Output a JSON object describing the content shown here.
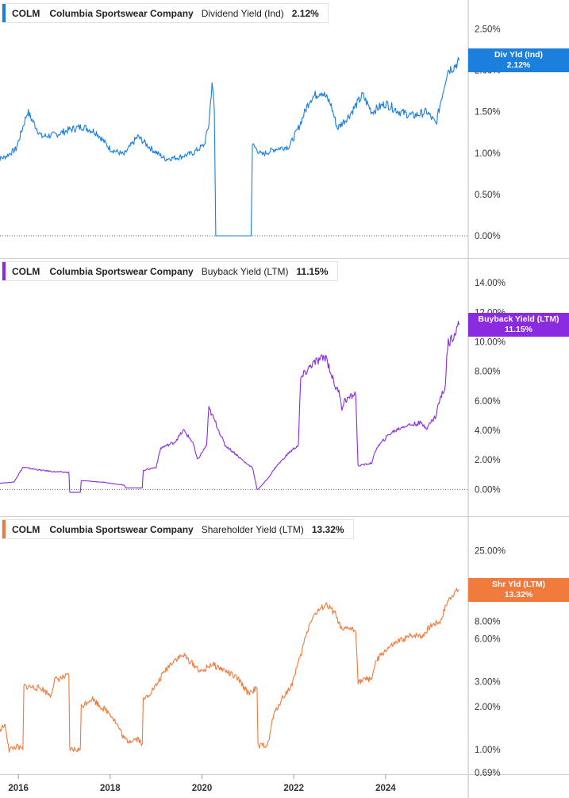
{
  "chart_data": [
    {
      "type": "line",
      "ticker": "COLM",
      "company": "Columbia Sportswear Company",
      "metric": "Dividend Yield (Ind)",
      "current": "2.12%",
      "tag_label": "Div Yld (Ind)",
      "color": "#1a7fdd",
      "y_scale": "linear",
      "y_ticks": [
        "0.00%",
        "0.50%",
        "1.00%",
        "1.50%",
        "2.00%",
        "2.50%"
      ],
      "y_tick_values": [
        0,
        0.5,
        1.0,
        1.5,
        2.0,
        2.5
      ],
      "ylim": [
        0,
        2.85
      ],
      "x": [
        2015.5,
        2015.7,
        2015.95,
        2016.2,
        2016.5,
        2016.8,
        2017.1,
        2017.4,
        2017.7,
        2018.0,
        2018.3,
        2018.6,
        2018.9,
        2019.2,
        2019.5,
        2019.8,
        2020.05,
        2020.15,
        2020.22,
        2020.25,
        2020.27,
        2020.3,
        2021.07,
        2021.1,
        2021.3,
        2021.6,
        2021.9,
        2022.1,
        2022.35,
        2022.6,
        2022.8,
        2022.95,
        2023.2,
        2023.5,
        2023.7,
        2024.0,
        2024.3,
        2024.6,
        2024.9,
        2025.1,
        2025.2,
        2025.35,
        2025.5,
        2025.6
      ],
      "values": [
        0.92,
        0.95,
        1.05,
        1.5,
        1.2,
        1.22,
        1.28,
        1.32,
        1.25,
        1.05,
        0.98,
        1.2,
        1.05,
        0.93,
        0.95,
        1.0,
        1.1,
        1.35,
        1.85,
        1.7,
        1.5,
        0.0,
        0.0,
        1.1,
        0.98,
        1.05,
        1.08,
        1.3,
        1.65,
        1.75,
        1.6,
        1.3,
        1.45,
        1.7,
        1.5,
        1.6,
        1.5,
        1.45,
        1.5,
        1.35,
        1.62,
        2.0,
        2.05,
        2.12
      ]
    },
    {
      "type": "line",
      "ticker": "COLM",
      "company": "Columbia Sportswear Company",
      "metric": "Buyback Yield (LTM)",
      "current": "11.15%",
      "tag_label": "Buyback Yield (LTM)",
      "color": "#8a2be2",
      "y_scale": "linear",
      "y_ticks": [
        "0.00%",
        "2.00%",
        "4.00%",
        "6.00%",
        "8.00%",
        "10.00%",
        "12.00%",
        "14.00%"
      ],
      "y_tick_values": [
        0,
        2,
        4,
        6,
        8,
        10,
        12,
        14
      ],
      "ylim": [
        -0.3,
        14.6
      ],
      "x": [
        2015.5,
        2015.9,
        2016.1,
        2016.5,
        2016.8,
        2017.1,
        2017.12,
        2017.35,
        2017.37,
        2017.8,
        2018.3,
        2018.35,
        2018.7,
        2018.72,
        2019.0,
        2019.1,
        2019.4,
        2019.6,
        2019.8,
        2019.9,
        2020.1,
        2020.15,
        2020.3,
        2020.5,
        2020.7,
        2020.95,
        2021.1,
        2021.2,
        2021.22,
        2021.45,
        2021.6,
        2021.75,
        2021.9,
        2022.1,
        2022.15,
        2022.4,
        2022.7,
        2022.9,
        2023.0,
        2023.05,
        2023.1,
        2023.35,
        2023.4,
        2023.7,
        2023.8,
        2024.1,
        2024.4,
        2024.75,
        2024.9,
        2025.1,
        2025.15,
        2025.3,
        2025.35,
        2025.5,
        2025.6
      ],
      "values": [
        0.4,
        0.5,
        1.5,
        1.3,
        1.2,
        1.15,
        -0.2,
        -0.2,
        0.6,
        0.5,
        0.3,
        0.1,
        0.1,
        1.3,
        1.5,
        2.8,
        3.2,
        4.0,
        3.2,
        2.0,
        3.0,
        5.5,
        4.5,
        3.0,
        2.5,
        1.8,
        1.5,
        0.0,
        0.0,
        0.8,
        1.5,
        2.0,
        2.5,
        3.0,
        7.5,
        8.5,
        9.0,
        7.0,
        6.5,
        5.5,
        6.0,
        6.5,
        1.6,
        1.8,
        2.8,
        3.8,
        4.3,
        4.5,
        4.2,
        5.0,
        5.8,
        7.0,
        9.8,
        10.6,
        11.15
      ]
    },
    {
      "type": "line",
      "ticker": "COLM",
      "company": "Columbia Sportswear Company",
      "metric": "Shareholder Yield (LTM)",
      "current": "13.32%",
      "tag_label": "Shr Yld (LTM)",
      "color": "#f07a3c",
      "y_scale": "log",
      "y_ticks": [
        "0.69%",
        "1.00%",
        "2.00%",
        "3.00%",
        "6.00%",
        "8.00%",
        "25.00%"
      ],
      "y_tick_values": [
        0.69,
        1.0,
        2.0,
        3.0,
        6.0,
        8.0,
        25.0
      ],
      "ylim": [
        0.69,
        33
      ],
      "x": [
        2015.5,
        2015.7,
        2015.8,
        2015.95,
        2016.1,
        2016.12,
        2016.5,
        2016.7,
        2016.8,
        2017.1,
        2017.12,
        2017.35,
        2017.37,
        2017.6,
        2017.8,
        2018.0,
        2018.3,
        2018.38,
        2018.6,
        2018.7,
        2018.72,
        2019.0,
        2019.2,
        2019.4,
        2019.6,
        2019.8,
        2020.0,
        2020.2,
        2020.5,
        2020.8,
        2021.0,
        2021.2,
        2021.22,
        2021.45,
        2021.55,
        2021.75,
        2021.95,
        2022.15,
        2022.4,
        2022.7,
        2022.9,
        2023.0,
        2023.05,
        2023.2,
        2023.35,
        2023.4,
        2023.7,
        2023.8,
        2024.0,
        2024.3,
        2024.6,
        2024.8,
        2025.0,
        2025.2,
        2025.35,
        2025.5,
        2025.6
      ],
      "values": [
        1.2,
        1.5,
        1.0,
        1.05,
        1.0,
        2.8,
        2.7,
        2.4,
        3.1,
        3.3,
        1.0,
        1.0,
        2.0,
        2.3,
        2.0,
        1.8,
        1.2,
        1.15,
        1.2,
        1.1,
        2.2,
        2.8,
        3.6,
        4.3,
        4.6,
        4.0,
        3.5,
        4.0,
        3.6,
        3.1,
        2.5,
        2.7,
        1.05,
        1.1,
        1.7,
        2.3,
        2.8,
        4.5,
        8.5,
        10.5,
        9.0,
        7.5,
        6.8,
        7.2,
        6.8,
        3.0,
        3.2,
        4.2,
        5.0,
        5.8,
        6.4,
        6.3,
        7.5,
        8.0,
        11.0,
        12.8,
        13.32
      ]
    }
  ],
  "x_axis": {
    "ticks": [
      "2016",
      "2018",
      "2020",
      "2022",
      "2024"
    ],
    "tick_values": [
      2016,
      2018,
      2020,
      2022,
      2024
    ],
    "range": [
      2015.6,
      2025.8
    ]
  }
}
